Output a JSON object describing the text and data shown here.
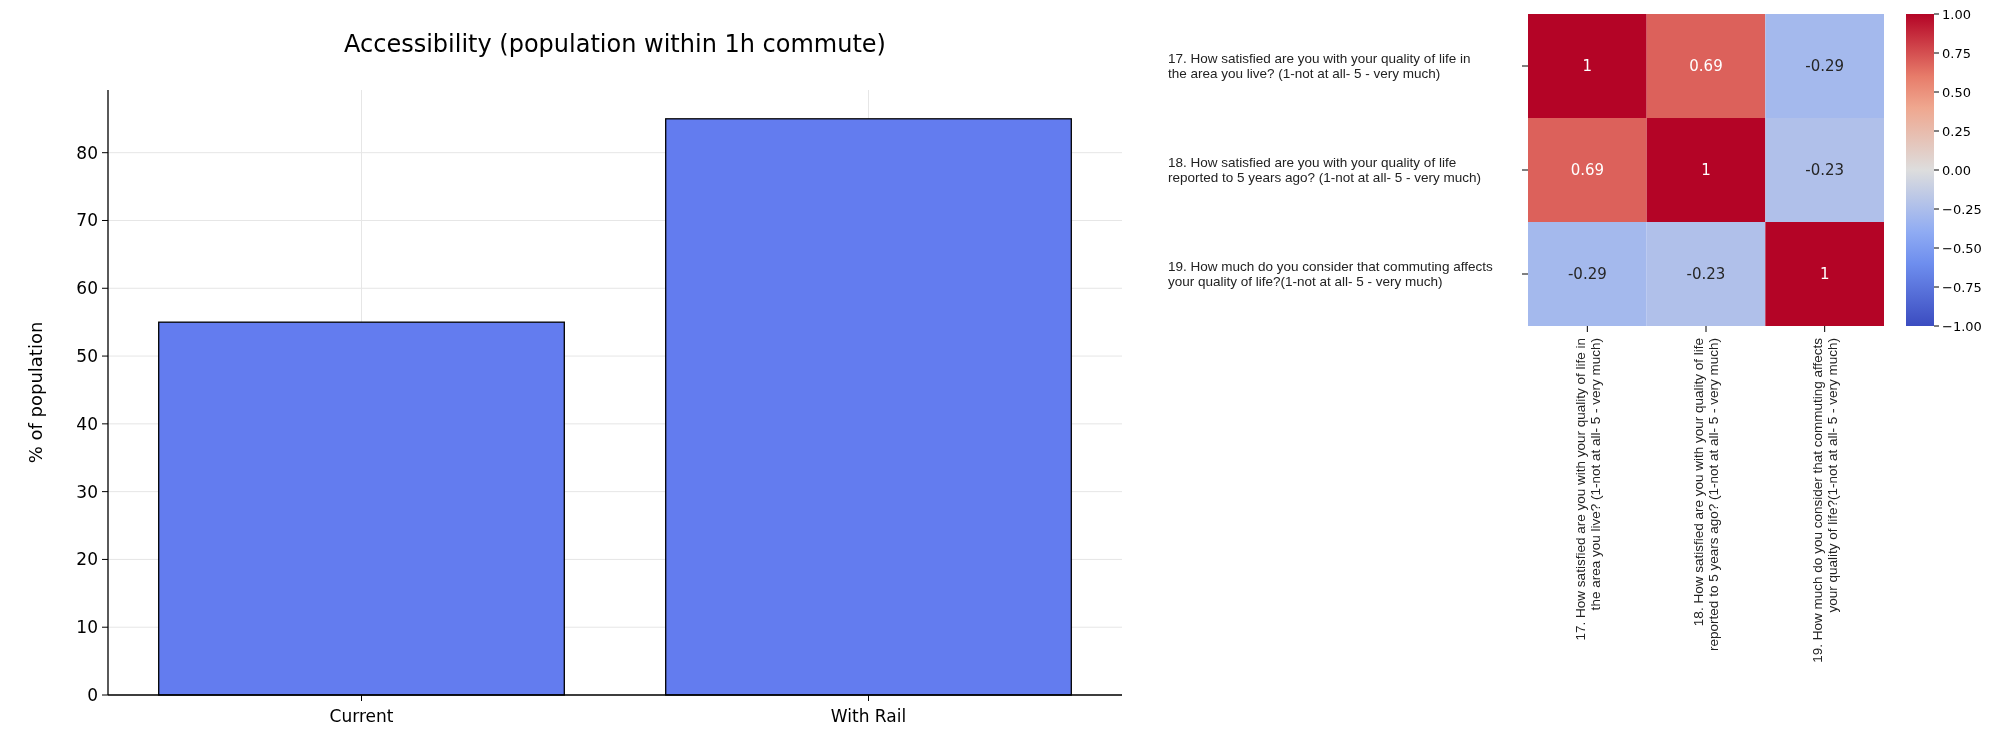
{
  "chart_data": [
    {
      "type": "bar",
      "title": "Accessibility (population within 1h commute)",
      "ylabel": "% of population",
      "categories": [
        "Current",
        "With Rail"
      ],
      "values": [
        55,
        85
      ],
      "color": "#637cef",
      "ylim": [
        0,
        89.25
      ],
      "yticks": [
        0,
        10,
        20,
        30,
        40,
        50,
        60,
        70,
        80
      ],
      "grid": true
    },
    {
      "type": "heatmap",
      "categories": [
        "17. How satisfied are you with your quality of life in the area you live? (1-not  at all- 5 - very much)",
        "18. How satisfied are you with your quality of life reported to 5 years ago? (1-not  at all- 5 - very much)",
        "19. How much do you consider that commuting affects your quality of life?(1-not  at all- 5 - very much)"
      ],
      "y_categories": [
        "17. How satisfied are you with your quality of life in the area you live? (1-not  at all- 5 - very much)",
        "18. How satisfied are you with your quality of life reported to 5 years ago? (1-not  at all- 5 - very much)",
        "19. How much do you consider that commuting affects your quality of life?(1-not  at all- 5 - very much)"
      ],
      "cells": [
        [
          1,
          0.69,
          -0.29
        ],
        [
          0.69,
          1,
          -0.23
        ],
        [
          -0.29,
          -0.23,
          1
        ]
      ],
      "data_labels": true,
      "clim": [
        -1,
        1
      ],
      "cticks": [
        {
          "value": -1,
          "label": "−1.00"
        },
        {
          "value": -0.75,
          "label": "−0.75"
        },
        {
          "value": -0.5,
          "label": "−0.50"
        },
        {
          "value": -0.25,
          "label": "−0.25"
        },
        {
          "value": 0,
          "label": "0.00"
        },
        {
          "value": 0.25,
          "label": "0.25"
        },
        {
          "value": 0.5,
          "label": "0.50"
        },
        {
          "value": 0.75,
          "label": "0.75"
        },
        {
          "value": 1,
          "label": "1.00"
        }
      ]
    }
  ]
}
